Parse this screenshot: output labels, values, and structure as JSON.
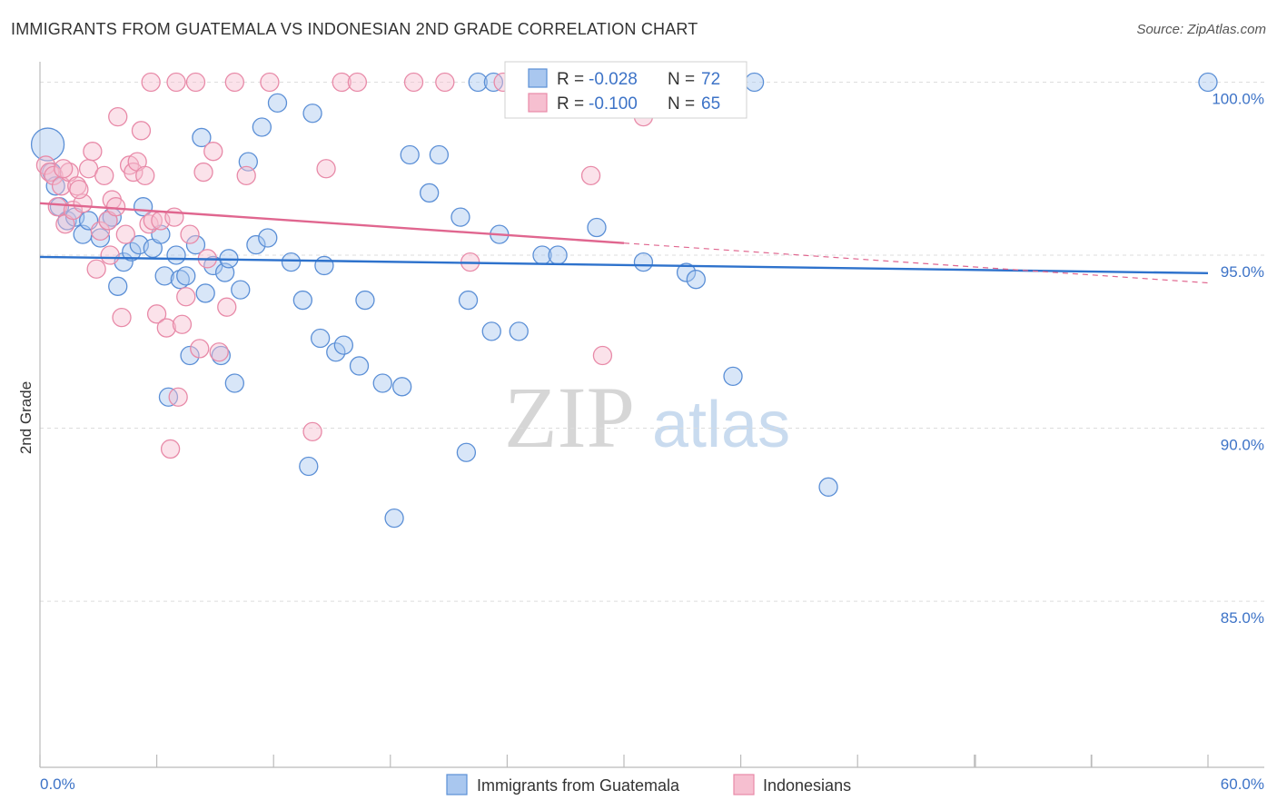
{
  "title": "IMMIGRANTS FROM GUATEMALA VS INDONESIAN 2ND GRADE CORRELATION CHART",
  "source": "Source: ZipAtlas.com",
  "watermark": {
    "zip": "ZIP",
    "atlas": "atlas"
  },
  "colors": {
    "blue": "#5b8fd6",
    "blue_fill": "#a9c7ef",
    "blue_line": "#2e72cc",
    "pink": "#e88aa8",
    "pink_fill": "#f6bfd0",
    "pink_line": "#e0668f",
    "grid": "#dddddd",
    "axis_text": "#3d73c7"
  },
  "legend": {
    "rows": [
      {
        "r_label": "R =",
        "r_value": "-0.028",
        "n_label": "N =",
        "n_value": "72",
        "series": "blue"
      },
      {
        "r_label": "R =",
        "r_value": "-0.100",
        "n_label": "N =",
        "n_value": "65",
        "series": "pink"
      }
    ]
  },
  "bottom_legend": [
    {
      "label": "Immigrants from Guatemala",
      "series": "blue"
    },
    {
      "label": "Indonesians",
      "series": "pink"
    }
  ],
  "chart_data": {
    "type": "scatter",
    "title": "IMMIGRANTS FROM GUATEMALA VS INDONESIAN 2ND GRADE CORRELATION CHART",
    "xlabel": "",
    "ylabel": "2nd Grade",
    "xlim": [
      0,
      60
    ],
    "ylim": [
      80.2,
      100.8
    ],
    "x_tick_labels": [
      "0.0%",
      "60.0%"
    ],
    "y_ticks": [
      85,
      90,
      95,
      100
    ],
    "y_tick_labels": [
      "85.0%",
      "90.0%",
      "95.0%",
      "100.0%"
    ],
    "series": [
      {
        "name": "Immigrants from Guatemala",
        "color": "blue",
        "trend": {
          "x0": 0,
          "y0": 94.95,
          "x1": 60,
          "y1": 94.48,
          "dashed_from": null
        },
        "points": [
          [
            0.4,
            98.2,
            18
          ],
          [
            0.6,
            97.4,
            10
          ],
          [
            0.8,
            97.0,
            10
          ],
          [
            1.0,
            96.4,
            10
          ],
          [
            1.4,
            96.0,
            10
          ],
          [
            1.8,
            96.1,
            10
          ],
          [
            2.2,
            95.6,
            10
          ],
          [
            2.5,
            96.0,
            10
          ],
          [
            3.1,
            95.5,
            10
          ],
          [
            3.5,
            96.0,
            10
          ],
          [
            3.7,
            96.1,
            10
          ],
          [
            4.0,
            94.1,
            10
          ],
          [
            4.3,
            94.8,
            10
          ],
          [
            4.7,
            95.1,
            10
          ],
          [
            5.1,
            95.3,
            10
          ],
          [
            5.3,
            96.4,
            10
          ],
          [
            5.8,
            95.2,
            10
          ],
          [
            6.2,
            95.6,
            10
          ],
          [
            6.4,
            94.4,
            10
          ],
          [
            6.6,
            90.9,
            10
          ],
          [
            7.0,
            95.0,
            10
          ],
          [
            7.2,
            94.3,
            10
          ],
          [
            7.5,
            94.4,
            10
          ],
          [
            7.7,
            92.1,
            10
          ],
          [
            8.0,
            95.3,
            10
          ],
          [
            8.3,
            98.4,
            10
          ],
          [
            8.5,
            93.9,
            10
          ],
          [
            8.9,
            94.7,
            10
          ],
          [
            9.3,
            92.1,
            10
          ],
          [
            9.5,
            94.5,
            10
          ],
          [
            9.7,
            94.9,
            10
          ],
          [
            10.0,
            91.3,
            10
          ],
          [
            10.3,
            94.0,
            10
          ],
          [
            10.7,
            97.7,
            10
          ],
          [
            11.1,
            95.3,
            10
          ],
          [
            11.4,
            98.7,
            10
          ],
          [
            11.7,
            95.5,
            10
          ],
          [
            12.2,
            99.4,
            10
          ],
          [
            12.9,
            94.8,
            10
          ],
          [
            13.5,
            93.7,
            10
          ],
          [
            13.8,
            88.9,
            10
          ],
          [
            14.0,
            99.1,
            10
          ],
          [
            14.4,
            92.6,
            10
          ],
          [
            14.6,
            94.7,
            10
          ],
          [
            15.2,
            92.2,
            10
          ],
          [
            15.6,
            92.4,
            10
          ],
          [
            16.4,
            91.8,
            10
          ],
          [
            16.7,
            93.7,
            10
          ],
          [
            17.6,
            91.3,
            10
          ],
          [
            18.2,
            87.4,
            10
          ],
          [
            18.6,
            91.2,
            10
          ],
          [
            19.0,
            97.9,
            10
          ],
          [
            20.0,
            96.8,
            10
          ],
          [
            20.5,
            97.9,
            10
          ],
          [
            21.6,
            96.1,
            10
          ],
          [
            21.9,
            89.3,
            10
          ],
          [
            22.0,
            93.7,
            10
          ],
          [
            22.5,
            100.0,
            10
          ],
          [
            23.2,
            92.8,
            10
          ],
          [
            23.6,
            95.6,
            10
          ],
          [
            24.6,
            92.8,
            10
          ],
          [
            25.8,
            95.0,
            10
          ],
          [
            26.6,
            95.0,
            10
          ],
          [
            28.6,
            95.8,
            10
          ],
          [
            31.0,
            94.8,
            10
          ],
          [
            33.2,
            94.5,
            10
          ],
          [
            33.7,
            94.3,
            10
          ],
          [
            35.6,
            91.5,
            10
          ],
          [
            36.7,
            100.0,
            10
          ],
          [
            40.5,
            88.3,
            10
          ],
          [
            60.0,
            100.0,
            10
          ],
          [
            23.3,
            100.0,
            10
          ]
        ]
      },
      {
        "name": "Indonesians",
        "color": "pink",
        "trend": {
          "x0": 0,
          "y0": 96.5,
          "x1": 60,
          "y1": 94.2,
          "dashed_from": 30
        },
        "points": [
          [
            0.3,
            97.6,
            10
          ],
          [
            0.5,
            97.4,
            10
          ],
          [
            0.7,
            97.3,
            10
          ],
          [
            0.9,
            96.4,
            10
          ],
          [
            1.1,
            97.0,
            10
          ],
          [
            1.3,
            95.9,
            10
          ],
          [
            1.5,
            97.4,
            10
          ],
          [
            1.7,
            96.3,
            10
          ],
          [
            1.9,
            97.0,
            10
          ],
          [
            2.2,
            96.5,
            10
          ],
          [
            2.5,
            97.5,
            10
          ],
          [
            2.7,
            98.0,
            10
          ],
          [
            2.9,
            94.6,
            10
          ],
          [
            3.1,
            95.7,
            10
          ],
          [
            3.3,
            97.3,
            10
          ],
          [
            3.5,
            96.0,
            10
          ],
          [
            3.7,
            96.6,
            10
          ],
          [
            3.9,
            96.4,
            10
          ],
          [
            4.0,
            99.0,
            10
          ],
          [
            4.2,
            93.2,
            10
          ],
          [
            4.4,
            95.6,
            10
          ],
          [
            4.6,
            97.6,
            10
          ],
          [
            4.8,
            97.4,
            10
          ],
          [
            5.0,
            97.7,
            10
          ],
          [
            5.2,
            98.6,
            10
          ],
          [
            5.4,
            97.3,
            10
          ],
          [
            5.6,
            95.9,
            10
          ],
          [
            5.8,
            96.0,
            10
          ],
          [
            6.0,
            93.3,
            10
          ],
          [
            6.2,
            96.0,
            10
          ],
          [
            6.5,
            92.9,
            10
          ],
          [
            6.7,
            89.4,
            10
          ],
          [
            6.9,
            96.1,
            10
          ],
          [
            7.1,
            90.9,
            10
          ],
          [
            7.3,
            93.0,
            10
          ],
          [
            7.5,
            93.8,
            10
          ],
          [
            7.7,
            95.6,
            10
          ],
          [
            8.0,
            100.0,
            10
          ],
          [
            8.2,
            92.3,
            10
          ],
          [
            8.4,
            97.4,
            10
          ],
          [
            8.6,
            94.9,
            10
          ],
          [
            8.9,
            98.0,
            10
          ],
          [
            9.2,
            92.2,
            10
          ],
          [
            9.6,
            93.5,
            10
          ],
          [
            10.0,
            100.0,
            10
          ],
          [
            10.6,
            97.3,
            10
          ],
          [
            11.8,
            100.0,
            10
          ],
          [
            14.0,
            89.9,
            10
          ],
          [
            14.7,
            97.5,
            10
          ],
          [
            15.5,
            100.0,
            10
          ],
          [
            16.3,
            100.0,
            10
          ],
          [
            19.2,
            100.0,
            10
          ],
          [
            20.8,
            100.0,
            10
          ],
          [
            22.1,
            94.8,
            10
          ],
          [
            23.8,
            100.0,
            10
          ],
          [
            26.0,
            100.0,
            10
          ],
          [
            28.3,
            97.3,
            10
          ],
          [
            28.6,
            100.0,
            10
          ],
          [
            31.0,
            99.0,
            10
          ],
          [
            28.9,
            92.1,
            10
          ],
          [
            5.7,
            100.0,
            10
          ],
          [
            7.0,
            100.0,
            10
          ],
          [
            1.2,
            97.5,
            10
          ],
          [
            2.0,
            96.9,
            10
          ],
          [
            3.6,
            95.0,
            10
          ]
        ]
      }
    ]
  }
}
